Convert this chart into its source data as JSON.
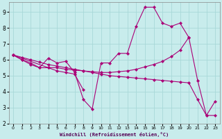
{
  "xlabel": "Windchill (Refroidissement éolien,°C)",
  "bg_color": "#c8ecec",
  "grid_color": "#a8d8d8",
  "line_color": "#aa0077",
  "xlim": [
    -0.5,
    23.5
  ],
  "ylim": [
    2,
    9.6
  ],
  "xticks": [
    0,
    1,
    2,
    3,
    4,
    5,
    6,
    7,
    8,
    9,
    10,
    11,
    12,
    13,
    14,
    15,
    16,
    17,
    18,
    19,
    20,
    21,
    22,
    23
  ],
  "yticks": [
    2,
    3,
    4,
    5,
    6,
    7,
    8,
    9
  ],
  "line1_x": [
    0,
    1,
    2,
    3,
    4,
    5,
    6,
    7,
    8,
    9,
    10,
    11,
    12,
    13,
    14,
    15,
    16,
    17,
    18,
    19,
    20,
    21,
    22,
    23
  ],
  "line1_y": [
    6.3,
    6.0,
    5.8,
    5.5,
    6.1,
    5.8,
    5.9,
    5.2,
    3.5,
    2.9,
    5.8,
    5.8,
    6.4,
    6.4,
    8.1,
    9.3,
    9.3,
    8.3,
    8.1,
    8.3,
    7.4,
    4.7,
    2.5,
    3.4
  ],
  "line2_x": [
    0,
    1,
    2,
    3,
    4,
    5,
    6,
    7,
    8
  ],
  "line2_y": [
    6.3,
    6.0,
    5.7,
    5.5,
    5.5,
    5.3,
    5.2,
    5.1,
    4.1
  ],
  "line3_x": [
    0,
    4,
    5,
    6,
    7,
    8,
    9,
    10,
    11,
    12,
    13,
    14,
    15,
    16,
    17,
    18,
    19,
    20
  ],
  "line3_y": [
    6.3,
    5.5,
    5.5,
    5.4,
    5.35,
    5.3,
    5.25,
    5.2,
    5.2,
    5.25,
    5.3,
    5.4,
    5.55,
    5.7,
    5.9,
    6.2,
    6.6,
    7.4
  ],
  "line4_x": [
    0,
    1,
    2,
    3,
    4,
    5,
    6,
    7,
    8,
    9,
    10,
    11,
    12,
    13,
    14,
    15,
    16,
    17,
    18,
    19,
    20,
    21,
    22,
    23
  ],
  "line4_y": [
    6.3,
    6.15,
    6.0,
    5.85,
    5.7,
    5.6,
    5.5,
    5.4,
    5.3,
    5.2,
    5.1,
    5.0,
    4.95,
    4.9,
    4.85,
    4.8,
    4.75,
    4.7,
    4.65,
    4.6,
    4.55,
    3.5,
    2.5,
    2.5
  ]
}
